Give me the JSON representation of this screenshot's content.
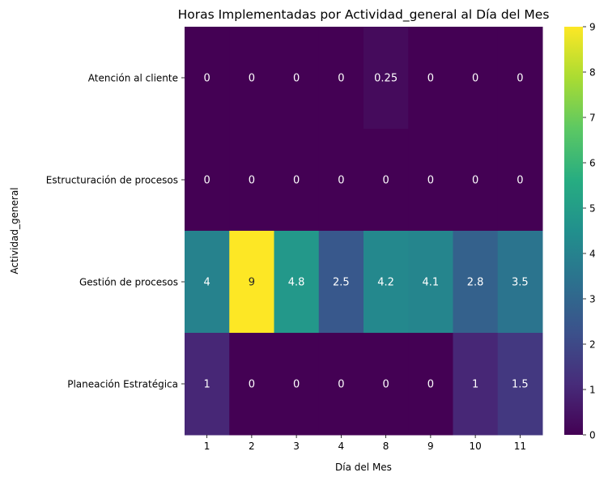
{
  "chart_data": {
    "type": "heatmap",
    "title": "Horas Implementadas por Actividad_general al Día del Mes",
    "xlabel": "Día del Mes",
    "ylabel": "Actividad_general",
    "x_categories": [
      "1",
      "2",
      "3",
      "4",
      "8",
      "9",
      "10",
      "11"
    ],
    "y_categories": [
      "Atención al cliente",
      "Estructuración de procesos",
      "Gestión de procesos",
      "Planeación Estratégica"
    ],
    "values": [
      [
        0,
        0,
        0,
        0,
        0.25,
        0,
        0,
        0
      ],
      [
        0,
        0,
        0,
        0,
        0,
        0,
        0,
        0
      ],
      [
        4,
        9,
        4.8,
        2.5,
        4.2,
        4.1,
        2.8,
        3.5
      ],
      [
        1,
        0,
        0,
        0,
        0,
        0,
        1,
        1.5
      ]
    ],
    "value_labels": [
      [
        "0",
        "0",
        "0",
        "0",
        "0.25",
        "0",
        "0",
        "0"
      ],
      [
        "0",
        "0",
        "0",
        "0",
        "0",
        "0",
        "0",
        "0"
      ],
      [
        "4",
        "9",
        "4.8",
        "2.5",
        "4.2",
        "4.1",
        "2.8",
        "3.5"
      ],
      [
        "1",
        "0",
        "0",
        "0",
        "0",
        "0",
        "1",
        "1.5"
      ]
    ],
    "colormap": "viridis",
    "vmin": 0,
    "vmax": 9,
    "colorbar_ticks": [
      "0",
      "1",
      "2",
      "3",
      "4",
      "5",
      "6",
      "7",
      "8",
      "9"
    ],
    "annotation_color_light": "#ffffff",
    "annotation_color_dark": "#262626"
  }
}
